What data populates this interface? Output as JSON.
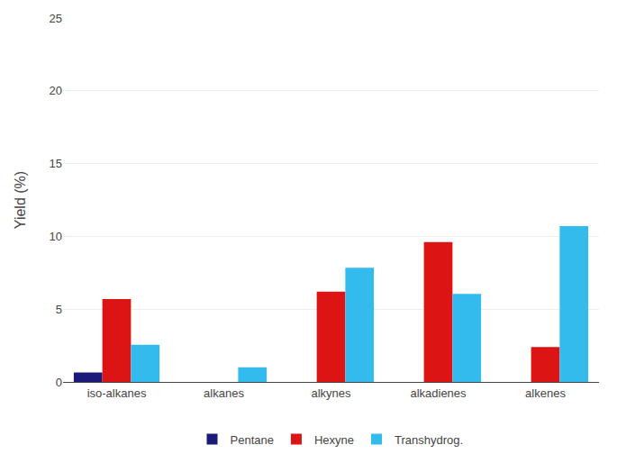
{
  "chart_data": {
    "type": "bar",
    "categories": [
      "iso-alkanes",
      "alkanes",
      "alkynes",
      "alkadienes",
      "alkenes"
    ],
    "series": [
      {
        "name": "Pentane",
        "color": "#1a1a7a",
        "values": [
          0.65,
          0.0,
          0.0,
          0.0,
          0.0
        ]
      },
      {
        "name": "Hexyne",
        "color": "#dc1414",
        "values": [
          5.7,
          0.0,
          6.2,
          9.6,
          2.4
        ]
      },
      {
        "name": "Transhydrog.",
        "color": "#33bbee",
        "values": [
          2.55,
          1.0,
          7.85,
          6.05,
          10.7
        ]
      }
    ],
    "ylabel": "Yield (%)",
    "ylim": [
      0,
      25
    ],
    "yticks": [
      0,
      5,
      10,
      15,
      20,
      25
    ],
    "grid": true,
    "legend": "bottom"
  }
}
